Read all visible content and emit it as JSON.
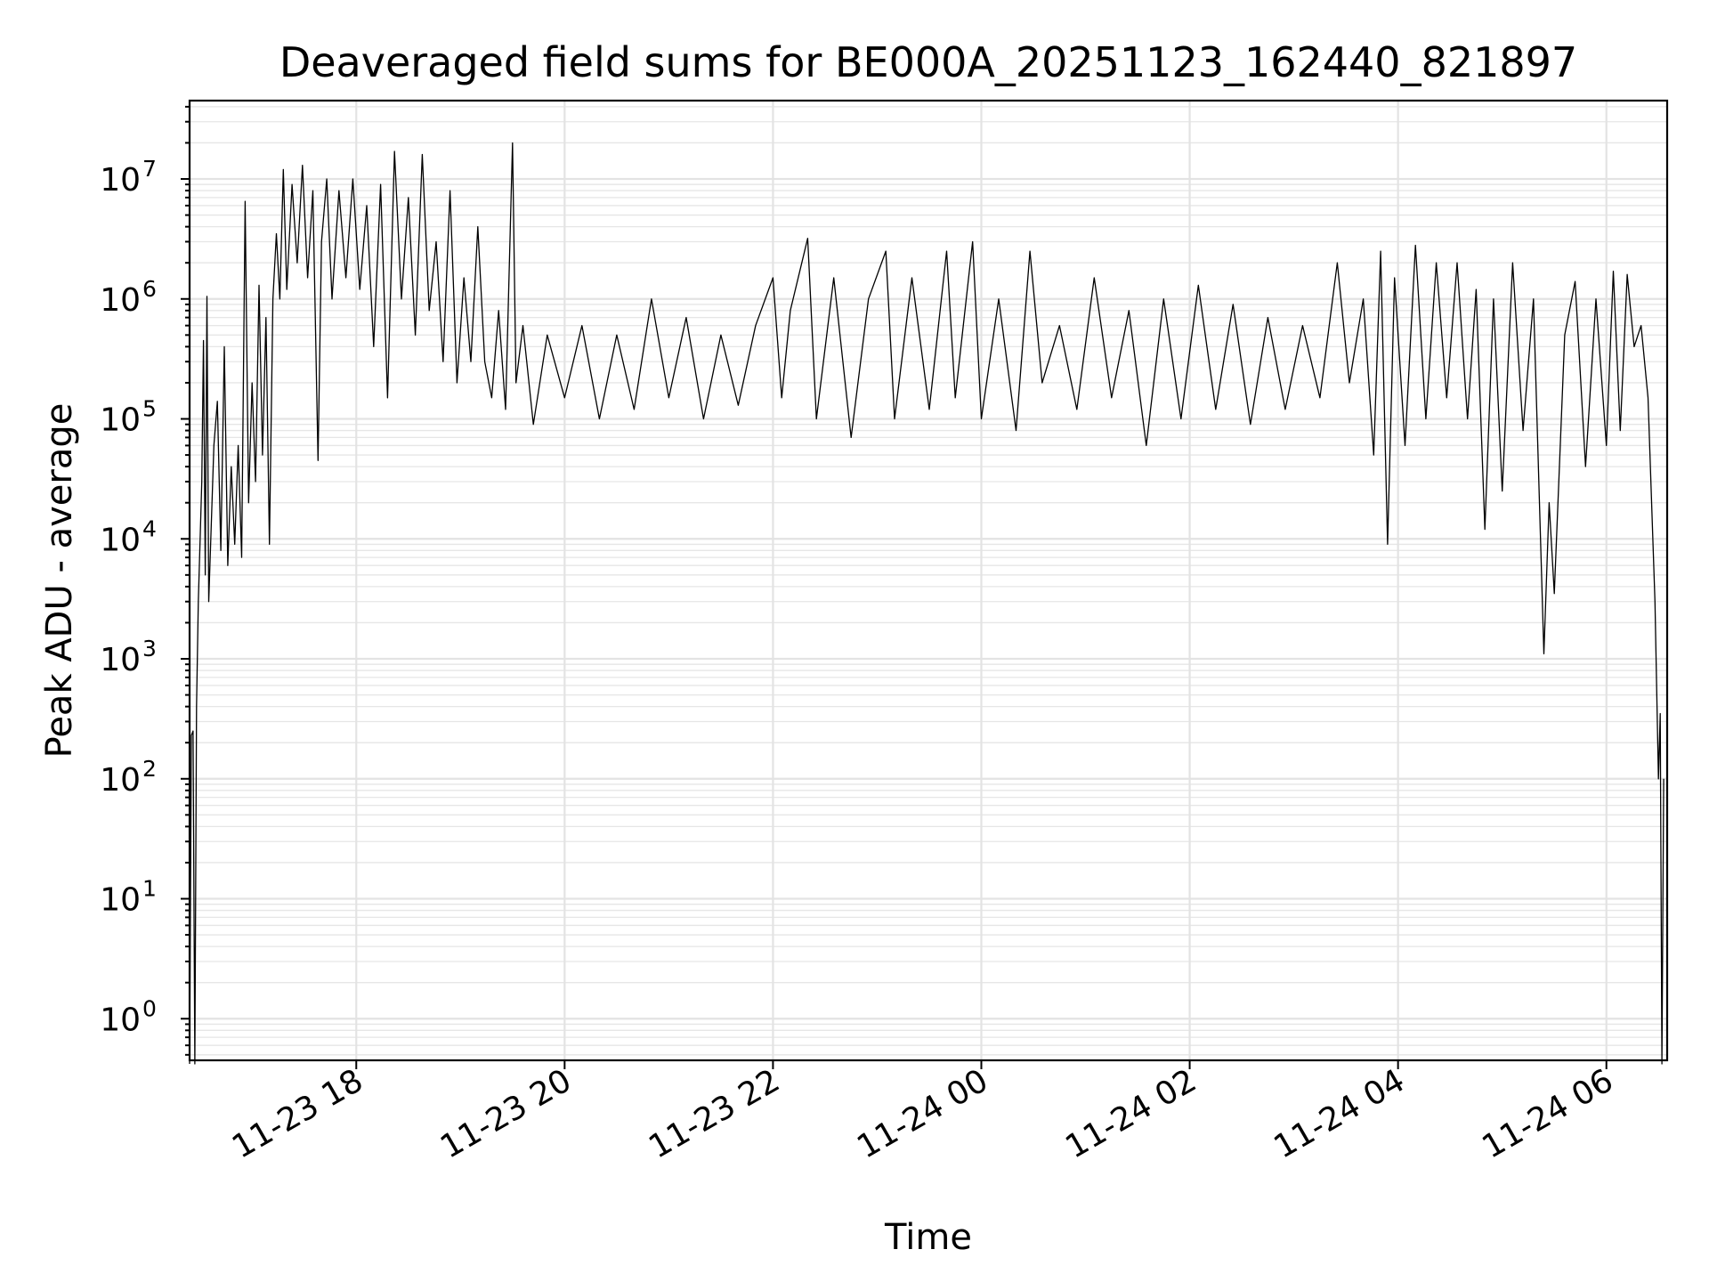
{
  "chart_data": {
    "type": "line",
    "title": "Deaveraged field sums for BE000A_20251123_162440_821897",
    "xlabel": "Time",
    "ylabel": "Peak ADU - average",
    "yscale": "log",
    "grid": true,
    "ylim": [
      0.45,
      45000000
    ],
    "xlim": [
      "2025-11-23 16:24",
      "2025-11-24 06:35"
    ],
    "x_ticks": [
      {
        "value": "2025-11-23 18:00",
        "label": "11-23 18"
      },
      {
        "value": "2025-11-23 20:00",
        "label": "11-23 20"
      },
      {
        "value": "2025-11-23 22:00",
        "label": "11-23 22"
      },
      {
        "value": "2025-11-24 00:00",
        "label": "11-24 00"
      },
      {
        "value": "2025-11-24 02:00",
        "label": "11-24 02"
      },
      {
        "value": "2025-11-24 04:00",
        "label": "11-24 04"
      },
      {
        "value": "2025-11-24 06:00",
        "label": "11-24 06"
      }
    ],
    "y_ticks": [
      {
        "value": 1,
        "base": "10",
        "exp": "0"
      },
      {
        "value": 10,
        "base": "10",
        "exp": "1"
      },
      {
        "value": 100,
        "base": "10",
        "exp": "2"
      },
      {
        "value": 1000,
        "base": "10",
        "exp": "3"
      },
      {
        "value": 10000,
        "base": "10",
        "exp": "4"
      },
      {
        "value": 100000,
        "base": "10",
        "exp": "5"
      },
      {
        "value": 1000000,
        "base": "10",
        "exp": "6"
      },
      {
        "value": 10000000,
        "base": "10",
        "exp": "7"
      }
    ],
    "series": [
      {
        "color": "#000000",
        "points": [
          [
            "2025-11-23 16:24",
            0.3
          ],
          [
            "2025-11-23 16:25",
            230
          ],
          [
            "2025-11-23 16:26",
            250
          ],
          [
            "2025-11-23 16:27",
            0.3
          ],
          [
            "2025-11-23 16:28",
            400
          ],
          [
            "2025-11-23 16:29",
            3000
          ],
          [
            "2025-11-23 16:31",
            30000
          ],
          [
            "2025-11-23 16:32",
            450000
          ],
          [
            "2025-11-23 16:33",
            5000
          ],
          [
            "2025-11-23 16:34",
            1050000
          ],
          [
            "2025-11-23 16:35",
            3000
          ],
          [
            "2025-11-23 16:38",
            60000
          ],
          [
            "2025-11-23 16:40",
            140000
          ],
          [
            "2025-11-23 16:42",
            8000
          ],
          [
            "2025-11-23 16:44",
            400000
          ],
          [
            "2025-11-23 16:46",
            6000
          ],
          [
            "2025-11-23 16:48",
            40000
          ],
          [
            "2025-11-23 16:50",
            9000
          ],
          [
            "2025-11-23 16:52",
            60000
          ],
          [
            "2025-11-23 16:54",
            7000
          ],
          [
            "2025-11-23 16:56",
            6500000
          ],
          [
            "2025-11-23 16:58",
            20000
          ],
          [
            "2025-11-23 17:00",
            200000
          ],
          [
            "2025-11-23 17:02",
            30000
          ],
          [
            "2025-11-23 17:04",
            1300000
          ],
          [
            "2025-11-23 17:06",
            50000
          ],
          [
            "2025-11-23 17:08",
            700000
          ],
          [
            "2025-11-23 17:10",
            9000
          ],
          [
            "2025-11-23 17:12",
            1000000
          ],
          [
            "2025-11-23 17:14",
            3500000
          ],
          [
            "2025-11-23 17:16",
            1000000
          ],
          [
            "2025-11-23 17:18",
            12000000
          ],
          [
            "2025-11-23 17:20",
            1200000
          ],
          [
            "2025-11-23 17:23",
            9000000
          ],
          [
            "2025-11-23 17:26",
            2000000
          ],
          [
            "2025-11-23 17:29",
            13000000
          ],
          [
            "2025-11-23 17:32",
            1500000
          ],
          [
            "2025-11-23 17:35",
            8000000
          ],
          [
            "2025-11-23 17:38",
            45000
          ],
          [
            "2025-11-23 17:40",
            3000000
          ],
          [
            "2025-11-23 17:43",
            10000000
          ],
          [
            "2025-11-23 17:46",
            1000000
          ],
          [
            "2025-11-23 17:50",
            8000000
          ],
          [
            "2025-11-23 17:54",
            1500000
          ],
          [
            "2025-11-23 17:58",
            10000000
          ],
          [
            "2025-11-23 18:02",
            1200000
          ],
          [
            "2025-11-23 18:06",
            6000000
          ],
          [
            "2025-11-23 18:10",
            400000
          ],
          [
            "2025-11-23 18:14",
            9000000
          ],
          [
            "2025-11-23 18:18",
            150000
          ],
          [
            "2025-11-23 18:22",
            17000000
          ],
          [
            "2025-11-23 18:26",
            1000000
          ],
          [
            "2025-11-23 18:30",
            7000000
          ],
          [
            "2025-11-23 18:34",
            500000
          ],
          [
            "2025-11-23 18:38",
            16000000
          ],
          [
            "2025-11-23 18:42",
            800000
          ],
          [
            "2025-11-23 18:46",
            3000000
          ],
          [
            "2025-11-23 18:50",
            300000
          ],
          [
            "2025-11-23 18:54",
            8000000
          ],
          [
            "2025-11-23 18:58",
            200000
          ],
          [
            "2025-11-23 19:02",
            1500000
          ],
          [
            "2025-11-23 19:06",
            300000
          ],
          [
            "2025-11-23 19:10",
            4000000
          ],
          [
            "2025-11-23 19:14",
            300000
          ],
          [
            "2025-11-23 19:18",
            150000
          ],
          [
            "2025-11-23 19:22",
            800000
          ],
          [
            "2025-11-23 19:26",
            120000
          ],
          [
            "2025-11-23 19:30",
            20000000
          ],
          [
            "2025-11-23 19:32",
            200000
          ],
          [
            "2025-11-23 19:36",
            600000
          ],
          [
            "2025-11-23 19:42",
            90000
          ],
          [
            "2025-11-23 19:50",
            500000
          ],
          [
            "2025-11-23 20:00",
            150000
          ],
          [
            "2025-11-23 20:10",
            600000
          ],
          [
            "2025-11-23 20:20",
            100000
          ],
          [
            "2025-11-23 20:30",
            500000
          ],
          [
            "2025-11-23 20:40",
            120000
          ],
          [
            "2025-11-23 20:50",
            1000000
          ],
          [
            "2025-11-23 21:00",
            150000
          ],
          [
            "2025-11-23 21:10",
            700000
          ],
          [
            "2025-11-23 21:20",
            100000
          ],
          [
            "2025-11-23 21:30",
            500000
          ],
          [
            "2025-11-23 21:40",
            130000
          ],
          [
            "2025-11-23 21:50",
            600000
          ],
          [
            "2025-11-23 22:00",
            1500000
          ],
          [
            "2025-11-23 22:05",
            150000
          ],
          [
            "2025-11-23 22:10",
            800000
          ],
          [
            "2025-11-23 22:20",
            3200000
          ],
          [
            "2025-11-23 22:25",
            100000
          ],
          [
            "2025-11-23 22:35",
            1500000
          ],
          [
            "2025-11-23 22:45",
            70000
          ],
          [
            "2025-11-23 22:55",
            1000000
          ],
          [
            "2025-11-23 23:05",
            2500000
          ],
          [
            "2025-11-23 23:10",
            100000
          ],
          [
            "2025-11-23 23:20",
            1500000
          ],
          [
            "2025-11-23 23:30",
            120000
          ],
          [
            "2025-11-23 23:40",
            2500000
          ],
          [
            "2025-11-23 23:45",
            150000
          ],
          [
            "2025-11-23 23:55",
            3000000
          ],
          [
            "2025-11-24 00:00",
            100000
          ],
          [
            "2025-11-24 00:10",
            1000000
          ],
          [
            "2025-11-24 00:20",
            80000
          ],
          [
            "2025-11-24 00:28",
            2500000
          ],
          [
            "2025-11-24 00:35",
            200000
          ],
          [
            "2025-11-24 00:45",
            600000
          ],
          [
            "2025-11-24 00:55",
            120000
          ],
          [
            "2025-11-24 01:05",
            1500000
          ],
          [
            "2025-11-24 01:15",
            150000
          ],
          [
            "2025-11-24 01:25",
            800000
          ],
          [
            "2025-11-24 01:35",
            60000
          ],
          [
            "2025-11-24 01:45",
            1000000
          ],
          [
            "2025-11-24 01:55",
            100000
          ],
          [
            "2025-11-24 02:05",
            1300000
          ],
          [
            "2025-11-24 02:15",
            120000
          ],
          [
            "2025-11-24 02:25",
            900000
          ],
          [
            "2025-11-24 02:35",
            90000
          ],
          [
            "2025-11-24 02:45",
            700000
          ],
          [
            "2025-11-24 02:55",
            120000
          ],
          [
            "2025-11-24 03:05",
            600000
          ],
          [
            "2025-11-24 03:15",
            150000
          ],
          [
            "2025-11-24 03:25",
            2000000
          ],
          [
            "2025-11-24 03:32",
            200000
          ],
          [
            "2025-11-24 03:40",
            1000000
          ],
          [
            "2025-11-24 03:46",
            50000
          ],
          [
            "2025-11-24 03:50",
            2500000
          ],
          [
            "2025-11-24 03:54",
            9000
          ],
          [
            "2025-11-24 03:58",
            1500000
          ],
          [
            "2025-11-24 04:04",
            60000
          ],
          [
            "2025-11-24 04:10",
            2800000
          ],
          [
            "2025-11-24 04:16",
            100000
          ],
          [
            "2025-11-24 04:22",
            2000000
          ],
          [
            "2025-11-24 04:28",
            150000
          ],
          [
            "2025-11-24 04:34",
            2000000
          ],
          [
            "2025-11-24 04:40",
            100000
          ],
          [
            "2025-11-24 04:45",
            1200000
          ],
          [
            "2025-11-24 04:50",
            12000
          ],
          [
            "2025-11-24 04:55",
            1000000
          ],
          [
            "2025-11-24 05:00",
            25000
          ],
          [
            "2025-11-24 05:06",
            2000000
          ],
          [
            "2025-11-24 05:12",
            80000
          ],
          [
            "2025-11-24 05:18",
            1000000
          ],
          [
            "2025-11-24 05:24",
            1100
          ],
          [
            "2025-11-24 05:27",
            20000
          ],
          [
            "2025-11-24 05:30",
            3500
          ],
          [
            "2025-11-24 05:36",
            500000
          ],
          [
            "2025-11-24 05:42",
            1400000
          ],
          [
            "2025-11-24 05:48",
            40000
          ],
          [
            "2025-11-24 05:54",
            1000000
          ],
          [
            "2025-11-24 06:00",
            60000
          ],
          [
            "2025-11-24 06:04",
            1700000
          ],
          [
            "2025-11-24 06:08",
            80000
          ],
          [
            "2025-11-24 06:12",
            1600000
          ],
          [
            "2025-11-24 06:16",
            400000
          ],
          [
            "2025-11-24 06:20",
            600000
          ],
          [
            "2025-11-24 06:24",
            150000
          ],
          [
            "2025-11-24 06:28",
            3000
          ],
          [
            "2025-11-24 06:30",
            100
          ],
          [
            "2025-11-24 06:31",
            350
          ],
          [
            "2025-11-24 06:32",
            0.3
          ],
          [
            "2025-11-24 06:33",
            100
          ]
        ]
      }
    ]
  }
}
